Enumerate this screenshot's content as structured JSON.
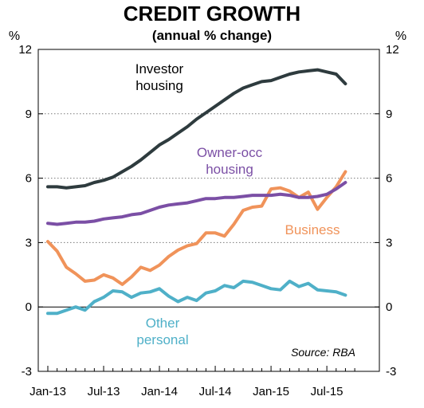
{
  "chart_data": {
    "type": "line",
    "title": "CREDIT GROWTH",
    "subtitle": "(annual % change)",
    "ylabel_left": "%",
    "ylabel_right": "%",
    "ylim": [
      -3,
      12
    ],
    "yticks": [
      "12",
      "9",
      "6",
      "3",
      "0",
      "-3"
    ],
    "xlim": [
      "2013-01",
      "2015-10"
    ],
    "xticks": [
      {
        "label": "Jan-13",
        "x": "2013-01"
      },
      {
        "label": "Jul-13",
        "x": "2013-07"
      },
      {
        "label": "Jan-14",
        "x": "2014-01"
      },
      {
        "label": "Jul-14",
        "x": "2014-07"
      },
      {
        "label": "Jan-15",
        "x": "2015-01"
      },
      {
        "label": "Jul-15",
        "x": "2015-07"
      }
    ],
    "grid": "horizontal dotted",
    "source": "Source: RBA",
    "x": [
      "2013-01",
      "2013-02",
      "2013-03",
      "2013-04",
      "2013-05",
      "2013-06",
      "2013-07",
      "2013-08",
      "2013-09",
      "2013-10",
      "2013-11",
      "2013-12",
      "2014-01",
      "2014-02",
      "2014-03",
      "2014-04",
      "2014-05",
      "2014-06",
      "2014-07",
      "2014-08",
      "2014-09",
      "2014-10",
      "2014-11",
      "2014-12",
      "2015-01",
      "2015-02",
      "2015-03",
      "2015-04",
      "2015-05",
      "2015-06",
      "2015-07",
      "2015-08",
      "2015-09"
    ],
    "series": [
      {
        "name": "Investor housing",
        "color": "#2e3b3e",
        "values": [
          5.6,
          5.6,
          5.55,
          5.6,
          5.65,
          5.8,
          5.9,
          6.05,
          6.3,
          6.55,
          6.85,
          7.2,
          7.55,
          7.8,
          8.1,
          8.4,
          8.75,
          9.05,
          9.35,
          9.65,
          9.95,
          10.2,
          10.35,
          10.5,
          10.55,
          10.7,
          10.85,
          10.95,
          11.0,
          11.05,
          10.95,
          10.85,
          10.4
        ]
      },
      {
        "name": "Owner-occ housing",
        "color": "#7b4fa5",
        "values": [
          3.9,
          3.85,
          3.9,
          3.95,
          3.95,
          4.0,
          4.1,
          4.15,
          4.2,
          4.3,
          4.35,
          4.5,
          4.65,
          4.75,
          4.8,
          4.85,
          4.95,
          5.05,
          5.05,
          5.1,
          5.1,
          5.15,
          5.2,
          5.2,
          5.2,
          5.25,
          5.2,
          5.1,
          5.1,
          5.15,
          5.25,
          5.5,
          5.8
        ]
      },
      {
        "name": "Business",
        "color": "#f0935a",
        "values": [
          3.05,
          2.6,
          1.85,
          1.55,
          1.2,
          1.25,
          1.5,
          1.35,
          1.05,
          1.4,
          1.85,
          1.7,
          1.95,
          2.35,
          2.65,
          2.85,
          2.95,
          3.45,
          3.45,
          3.3,
          3.85,
          4.5,
          4.65,
          4.7,
          5.5,
          5.55,
          5.4,
          5.1,
          5.35,
          4.55,
          5.1,
          5.6,
          6.3
        ]
      },
      {
        "name": "Other personal",
        "color": "#4fb0c8",
        "values": [
          -0.3,
          -0.3,
          -0.15,
          0.0,
          -0.15,
          0.25,
          0.45,
          0.75,
          0.7,
          0.45,
          0.65,
          0.7,
          0.85,
          0.5,
          0.25,
          0.45,
          0.3,
          0.65,
          0.75,
          1.0,
          0.9,
          1.2,
          1.15,
          1.0,
          0.85,
          0.8,
          1.2,
          0.95,
          1.1,
          0.8,
          0.75,
          0.7,
          0.55
        ]
      }
    ],
    "labels": [
      {
        "lines": [
          "Investor",
          "housing"
        ],
        "color": "#000000"
      },
      {
        "lines": [
          "Owner-occ",
          "housing"
        ],
        "color": "#7b4fa5"
      },
      {
        "lines": [
          "Business"
        ],
        "color": "#f0935a"
      },
      {
        "lines": [
          "Other",
          "personal"
        ],
        "color": "#4fb0c8"
      }
    ]
  }
}
